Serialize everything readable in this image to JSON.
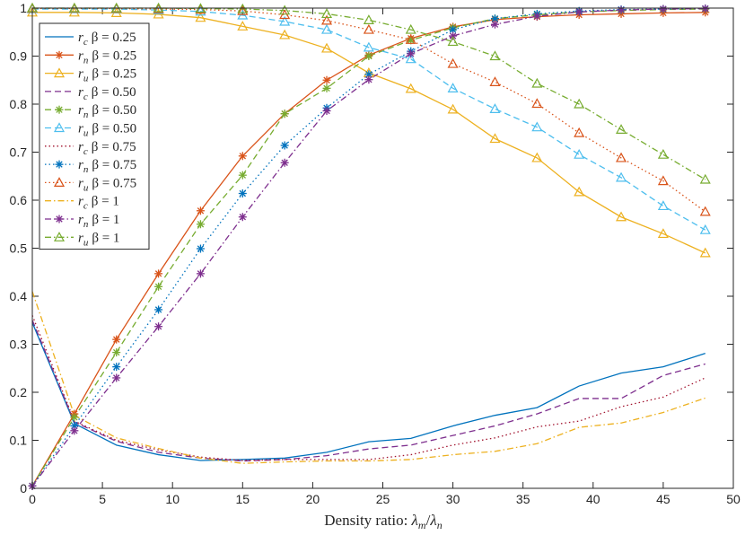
{
  "chart_data": {
    "type": "line",
    "title": "",
    "xlabel": "Density ratio: λm/λn",
    "xlabel_parts": {
      "prefix": "Density ratio: ",
      "num": "λ",
      "num_sub": "m",
      "slash": "/",
      "den": "λ",
      "den_sub": "n"
    },
    "ylabel": "",
    "xlim": [
      0,
      50
    ],
    "ylim": [
      0,
      1
    ],
    "xticks": [
      0,
      5,
      10,
      15,
      20,
      25,
      30,
      35,
      40,
      45,
      50
    ],
    "yticks": [
      0,
      0.1,
      0.2,
      0.3,
      0.4,
      0.5,
      0.6,
      0.7,
      0.8,
      0.9,
      1
    ],
    "xtick_labels": [
      "0",
      "5",
      "10",
      "15",
      "20",
      "25",
      "30",
      "35",
      "40",
      "45",
      "50"
    ],
    "ytick_labels": [
      "0",
      "0.1",
      "0.2",
      "0.3",
      "0.4",
      "0.5",
      "0.6",
      "0.7",
      "0.8",
      "0.9",
      "1"
    ],
    "legend_position": "top-left",
    "x": [
      0,
      3,
      6,
      9,
      12,
      15,
      18,
      21,
      24,
      27,
      30,
      33,
      36,
      39,
      42,
      45,
      48
    ],
    "series": [
      {
        "name": "r_c β = 0.25",
        "var": "r",
        "sub": "c",
        "beta": "β = 0.25",
        "color": "#0072BD",
        "dash": "solid",
        "marker": "none",
        "values": [
          0.345,
          0.135,
          0.09,
          0.07,
          0.058,
          0.06,
          0.063,
          0.075,
          0.097,
          0.104,
          0.13,
          0.152,
          0.168,
          0.213,
          0.24,
          0.253,
          0.281
        ]
      },
      {
        "name": "r_n β = 0.25",
        "var": "r",
        "sub": "n",
        "beta": "β = 0.25",
        "color": "#D95319",
        "dash": "solid",
        "marker": "star",
        "values": [
          0.005,
          0.155,
          0.31,
          0.447,
          0.578,
          0.692,
          0.78,
          0.85,
          0.902,
          0.937,
          0.961,
          0.976,
          0.982,
          0.986,
          0.988,
          0.99,
          0.991
        ]
      },
      {
        "name": "r_u β = 0.25",
        "var": "r",
        "sub": "u",
        "beta": "β = 0.25",
        "color": "#EDB120",
        "dash": "solid",
        "marker": "triangle",
        "values": [
          0.991,
          0.991,
          0.99,
          0.987,
          0.98,
          0.962,
          0.944,
          0.916,
          0.865,
          0.832,
          0.789,
          0.728,
          0.688,
          0.617,
          0.565,
          0.53,
          0.49
        ]
      },
      {
        "name": "r_c β = 0.50",
        "var": "r",
        "sub": "c",
        "beta": "β = 0.50",
        "color": "#7E2F8E",
        "dash": "dashed",
        "marker": "none",
        "values": [
          0.35,
          0.138,
          0.098,
          0.075,
          0.063,
          0.057,
          0.06,
          0.068,
          0.082,
          0.09,
          0.11,
          0.13,
          0.155,
          0.187,
          0.187,
          0.235,
          0.259
        ]
      },
      {
        "name": "r_n β = 0.50",
        "var": "r",
        "sub": "n",
        "beta": "β = 0.50",
        "color": "#77AC30",
        "dash": "dashed",
        "marker": "star",
        "values": [
          0.005,
          0.148,
          0.283,
          0.42,
          0.55,
          0.652,
          0.78,
          0.833,
          0.9,
          0.933,
          0.959,
          0.978,
          0.986,
          0.992,
          0.995,
          0.997,
          0.998
        ]
      },
      {
        "name": "r_u β = 0.50",
        "var": "r",
        "sub": "u",
        "beta": "β = 0.50",
        "color": "#4DBEEE",
        "dash": "dashed",
        "marker": "triangle",
        "values": [
          0.998,
          0.998,
          0.998,
          0.996,
          0.993,
          0.985,
          0.972,
          0.955,
          0.918,
          0.894,
          0.833,
          0.79,
          0.752,
          0.695,
          0.647,
          0.588,
          0.538
        ]
      },
      {
        "name": "r_c β = 0.75",
        "var": "r",
        "sub": "c",
        "beta": "β = 0.75",
        "color": "#A2142F",
        "dash": "dotted",
        "marker": "none",
        "values": [
          0.36,
          0.14,
          0.1,
          0.08,
          0.065,
          0.058,
          0.06,
          0.06,
          0.06,
          0.07,
          0.09,
          0.105,
          0.128,
          0.14,
          0.17,
          0.19,
          0.23
        ]
      },
      {
        "name": "r_n β = 0.75",
        "var": "r",
        "sub": "n",
        "beta": "β = 0.75",
        "color": "#0072BD",
        "dash": "dotted",
        "marker": "star",
        "values": [
          0.005,
          0.13,
          0.253,
          0.372,
          0.499,
          0.614,
          0.714,
          0.792,
          0.862,
          0.91,
          0.955,
          0.978,
          0.988,
          0.994,
          0.997,
          0.998,
          0.999
        ]
      },
      {
        "name": "r_u β = 0.75",
        "var": "r",
        "sub": "u",
        "beta": "β = 0.75",
        "color": "#D95319",
        "dash": "dotted",
        "marker": "triangle",
        "values": [
          0.999,
          0.999,
          0.999,
          0.998,
          0.997,
          0.994,
          0.986,
          0.974,
          0.955,
          0.934,
          0.884,
          0.846,
          0.801,
          0.74,
          0.688,
          0.64,
          0.576
        ]
      },
      {
        "name": "r_c β = 1",
        "var": "r",
        "sub": "c",
        "beta": "β = 1",
        "color": "#EDB120",
        "dash": "dashdot",
        "marker": "none",
        "values": [
          0.41,
          0.152,
          0.105,
          0.083,
          0.063,
          0.052,
          0.055,
          0.057,
          0.057,
          0.06,
          0.07,
          0.077,
          0.093,
          0.127,
          0.136,
          0.158,
          0.188
        ]
      },
      {
        "name": "r_n β = 1",
        "var": "r",
        "sub": "n",
        "beta": "β = 1",
        "color": "#7E2F8E",
        "dash": "dashdot",
        "marker": "star",
        "values": [
          0.005,
          0.12,
          0.23,
          0.337,
          0.447,
          0.565,
          0.678,
          0.786,
          0.851,
          0.905,
          0.942,
          0.966,
          0.983,
          0.992,
          0.996,
          0.998,
          0.999
        ]
      },
      {
        "name": "r_u β = 1",
        "var": "r",
        "sub": "u",
        "beta": "β = 1",
        "color": "#77AC30",
        "dash": "dashdot",
        "marker": "triangle",
        "values": [
          1.0,
          1.0,
          1.0,
          1.0,
          0.999,
          0.998,
          0.995,
          0.988,
          0.975,
          0.955,
          0.93,
          0.9,
          0.843,
          0.8,
          0.747,
          0.695,
          0.643
        ]
      }
    ]
  }
}
